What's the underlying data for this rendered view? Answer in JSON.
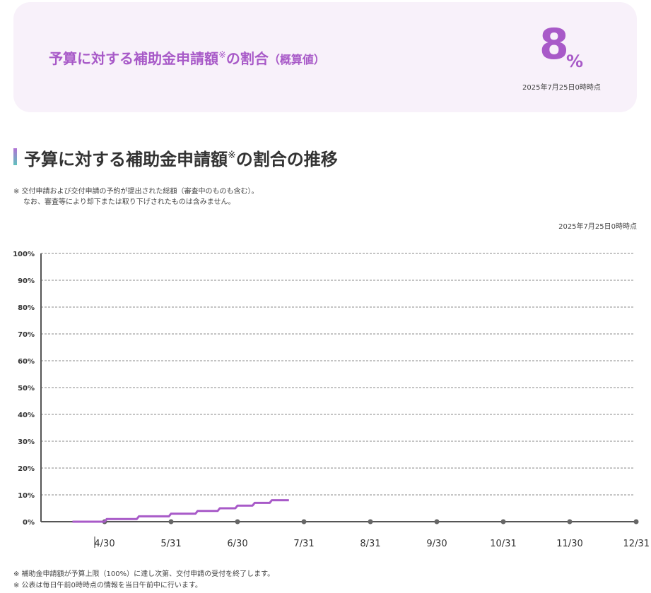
{
  "summary": {
    "label": "予算に対する補助金申請額",
    "label_mark": "※",
    "label_tail": "の割合",
    "label_sub": "（概算値）",
    "value": "8",
    "unit": "%",
    "date": "2025年7月25日0時時点"
  },
  "section": {
    "title": "予算に対する補助金申請額",
    "title_mark": "※",
    "title_tail": "の割合の推移",
    "note_line1": "※ 交付申請および交付申請の予約が提出された総額（審査中のものも含む）。",
    "note_line2": "なお、審査等により却下または取り下げされたものは含みません。"
  },
  "chart_date": "2025年7月25日0時時点",
  "footnotes": [
    "※ 補助金申請額が予算上限（100%）に達し次第、交付申請の受付を終了します。",
    "※ 公表は毎日午前0時時点の情報を当日午前中に行います。"
  ],
  "colors": {
    "accent": "#a85ac8",
    "line": "#a85ac8"
  },
  "chart_data": {
    "type": "line",
    "step": true,
    "x_ticks": [
      "4/30",
      "5/31",
      "6/30",
      "7/31",
      "8/31",
      "9/30",
      "10/31",
      "11/30",
      "12/31"
    ],
    "y_ticks": [
      "0%",
      "10%",
      "20%",
      "30%",
      "40%",
      "50%",
      "60%",
      "70%",
      "80%",
      "90%",
      "100%"
    ],
    "ylim": [
      0,
      100
    ],
    "grid": true,
    "series": [
      {
        "points": [
          [
            "4/15",
            0
          ],
          [
            "5/1",
            1
          ],
          [
            "5/16",
            2
          ],
          [
            "5/31",
            3
          ],
          [
            "6/12",
            4
          ],
          [
            "6/22",
            5
          ],
          [
            "6/30",
            6
          ],
          [
            "7/8",
            7
          ],
          [
            "7/16",
            8
          ],
          [
            "7/24",
            8
          ]
        ]
      }
    ]
  }
}
